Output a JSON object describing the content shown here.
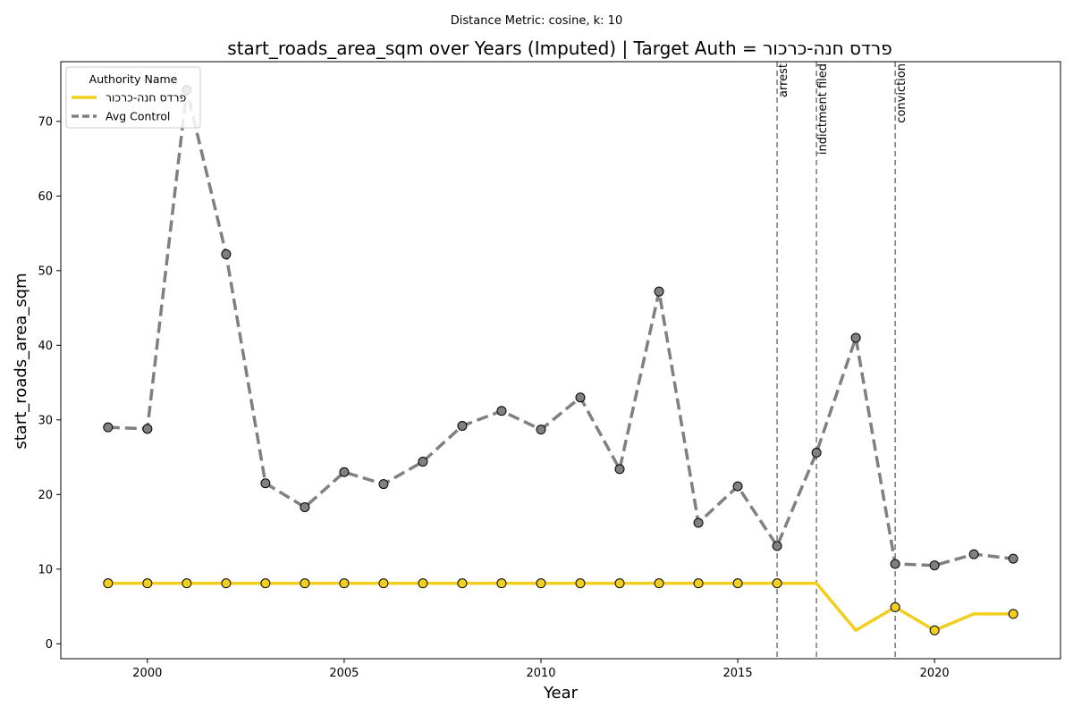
{
  "chart_data": {
    "type": "line",
    "subtitle": "Distance Metric: cosine, k: 10",
    "title": "start_roads_area_sqm over Years (Imputed) | Target Auth = פרדס חנה-כרכור",
    "xlabel": "Year",
    "ylabel": "start_roads_area_sqm",
    "xlim": [
      1997.8,
      2023.2
    ],
    "ylim": [
      -2,
      78
    ],
    "xticks": [
      2000,
      2005,
      2010,
      2015,
      2020
    ],
    "yticks": [
      0,
      10,
      20,
      30,
      40,
      50,
      60,
      70
    ],
    "grid": false,
    "legend": {
      "title": "Authority Name",
      "placement": "top-left"
    },
    "series": [
      {
        "name": "פרדס חנה-כרכור",
        "color": "#f2ce1f",
        "style": "solid",
        "x": [
          1999,
          2000,
          2001,
          2002,
          2003,
          2004,
          2005,
          2006,
          2007,
          2008,
          2009,
          2010,
          2011,
          2012,
          2013,
          2014,
          2015,
          2016,
          2017,
          2018,
          2019,
          2020,
          2021,
          2022
        ],
        "values": [
          8.1,
          8.1,
          8.1,
          8.1,
          8.1,
          8.1,
          8.1,
          8.1,
          8.1,
          8.1,
          8.1,
          8.1,
          8.1,
          8.1,
          8.1,
          8.1,
          8.1,
          8.1,
          8.1,
          1.8,
          4.9,
          1.8,
          4.0,
          4.0
        ],
        "markers_x": [
          1999,
          2000,
          2001,
          2002,
          2003,
          2004,
          2005,
          2006,
          2007,
          2008,
          2009,
          2010,
          2011,
          2012,
          2013,
          2014,
          2015,
          2016,
          2019,
          2020,
          2022
        ]
      },
      {
        "name": "Avg Control",
        "color": "#808080",
        "style": "dashed",
        "x": [
          1999,
          2000,
          2001,
          2002,
          2003,
          2004,
          2005,
          2006,
          2007,
          2008,
          2009,
          2010,
          2011,
          2012,
          2013,
          2014,
          2015,
          2016,
          2017,
          2018,
          2019,
          2020,
          2021,
          2022
        ],
        "values": [
          29.0,
          28.8,
          74.2,
          52.2,
          21.5,
          18.3,
          23.0,
          21.4,
          24.4,
          29.2,
          31.2,
          28.7,
          33.0,
          23.4,
          47.2,
          16.2,
          21.1,
          13.1,
          25.6,
          41.0,
          10.7,
          10.5,
          12.0,
          11.4
        ],
        "markers_x": [
          1999,
          2000,
          2001,
          2002,
          2003,
          2004,
          2005,
          2006,
          2007,
          2008,
          2009,
          2010,
          2011,
          2012,
          2013,
          2014,
          2015,
          2016,
          2017,
          2018,
          2019,
          2020,
          2021,
          2022
        ]
      }
    ],
    "events": [
      {
        "label": "arrest",
        "x": 2016
      },
      {
        "label": "indictment filed",
        "x": 2017
      },
      {
        "label": "conviction",
        "x": 2019
      }
    ]
  }
}
